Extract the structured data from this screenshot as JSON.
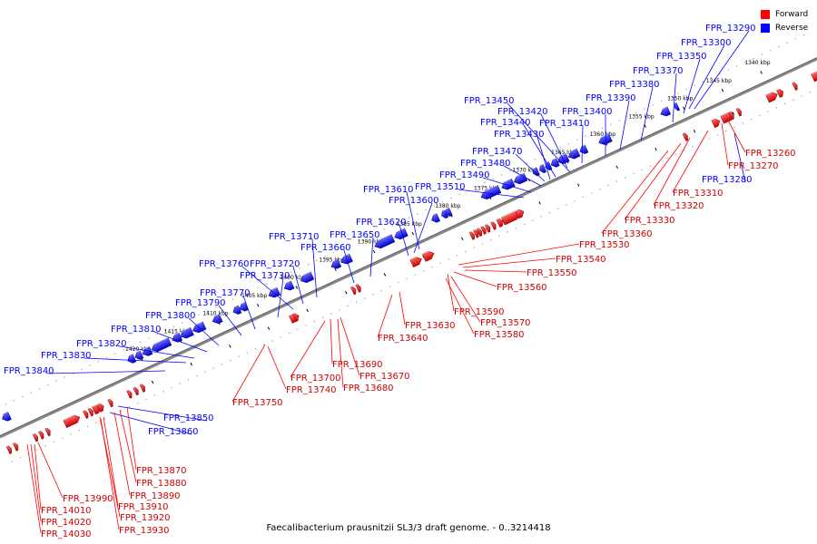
{
  "legend": [
    {
      "label": "Forward",
      "color": "#ff0000"
    },
    {
      "label": "Reverse",
      "color": "#0000ff"
    }
  ],
  "caption": "Faecalibacterium prausnitzii SL3/3 draft genome. - 0..3214418",
  "ticks": [
    "1340 kbp",
    "1345 kbp",
    "1350 kbp",
    "1355 kbp",
    "1360 kbp",
    "1365 kbp",
    "1370 kbp",
    "1375 kbp",
    "1380 kbp",
    "1385 kbp",
    "1390 kbp",
    "1395 kbp",
    "1400 kbp",
    "1405 kbp",
    "1410 kbp",
    "1415 kbp",
    "1420 kbp"
  ],
  "reverse_labels": [
    "FPR_13290",
    "FPR_13300",
    "FPR_13350",
    "FPR_13370",
    "FPR_13380",
    "FPR_13390",
    "FPR_13400",
    "FPR_13410",
    "FPR_13420",
    "FPR_13450",
    "FPR_13440",
    "FPR_13430",
    "FPR_13470",
    "FPR_13480",
    "FPR_13490",
    "FPR_13510",
    "FPR_13610",
    "FPR_13600",
    "FPR_13620",
    "FPR_13650",
    "FPR_13660",
    "FPR_13710",
    "FPR_13720",
    "FPR_13760",
    "FPR_13730",
    "FPR_13770",
    "FPR_13790",
    "FPR_13800",
    "FPR_13810",
    "FPR_13820",
    "FPR_13830",
    "FPR_13840",
    "FPR_13280",
    "FPR_13850",
    "FPR_13860"
  ],
  "forward_labels": [
    "FPR_13260",
    "FPR_13270",
    "FPR_13310",
    "FPR_13320",
    "FPR_13330",
    "FPR_13360",
    "FPR_13530",
    "FPR_13540",
    "FPR_13550",
    "FPR_13560",
    "FPR_13590",
    "FPR_13570",
    "FPR_13580",
    "FPR_13630",
    "FPR_13640",
    "FPR_13690",
    "FPR_13700",
    "FPR_13670",
    "FPR_13680",
    "FPR_13740",
    "FPR_13750",
    "FPR_13870",
    "FPR_13880",
    "FPR_13890",
    "FPR_13910",
    "FPR_13920",
    "FPR_13930",
    "FPR_13990",
    "FPR_14010",
    "FPR_14020",
    "FPR_14030"
  ]
}
